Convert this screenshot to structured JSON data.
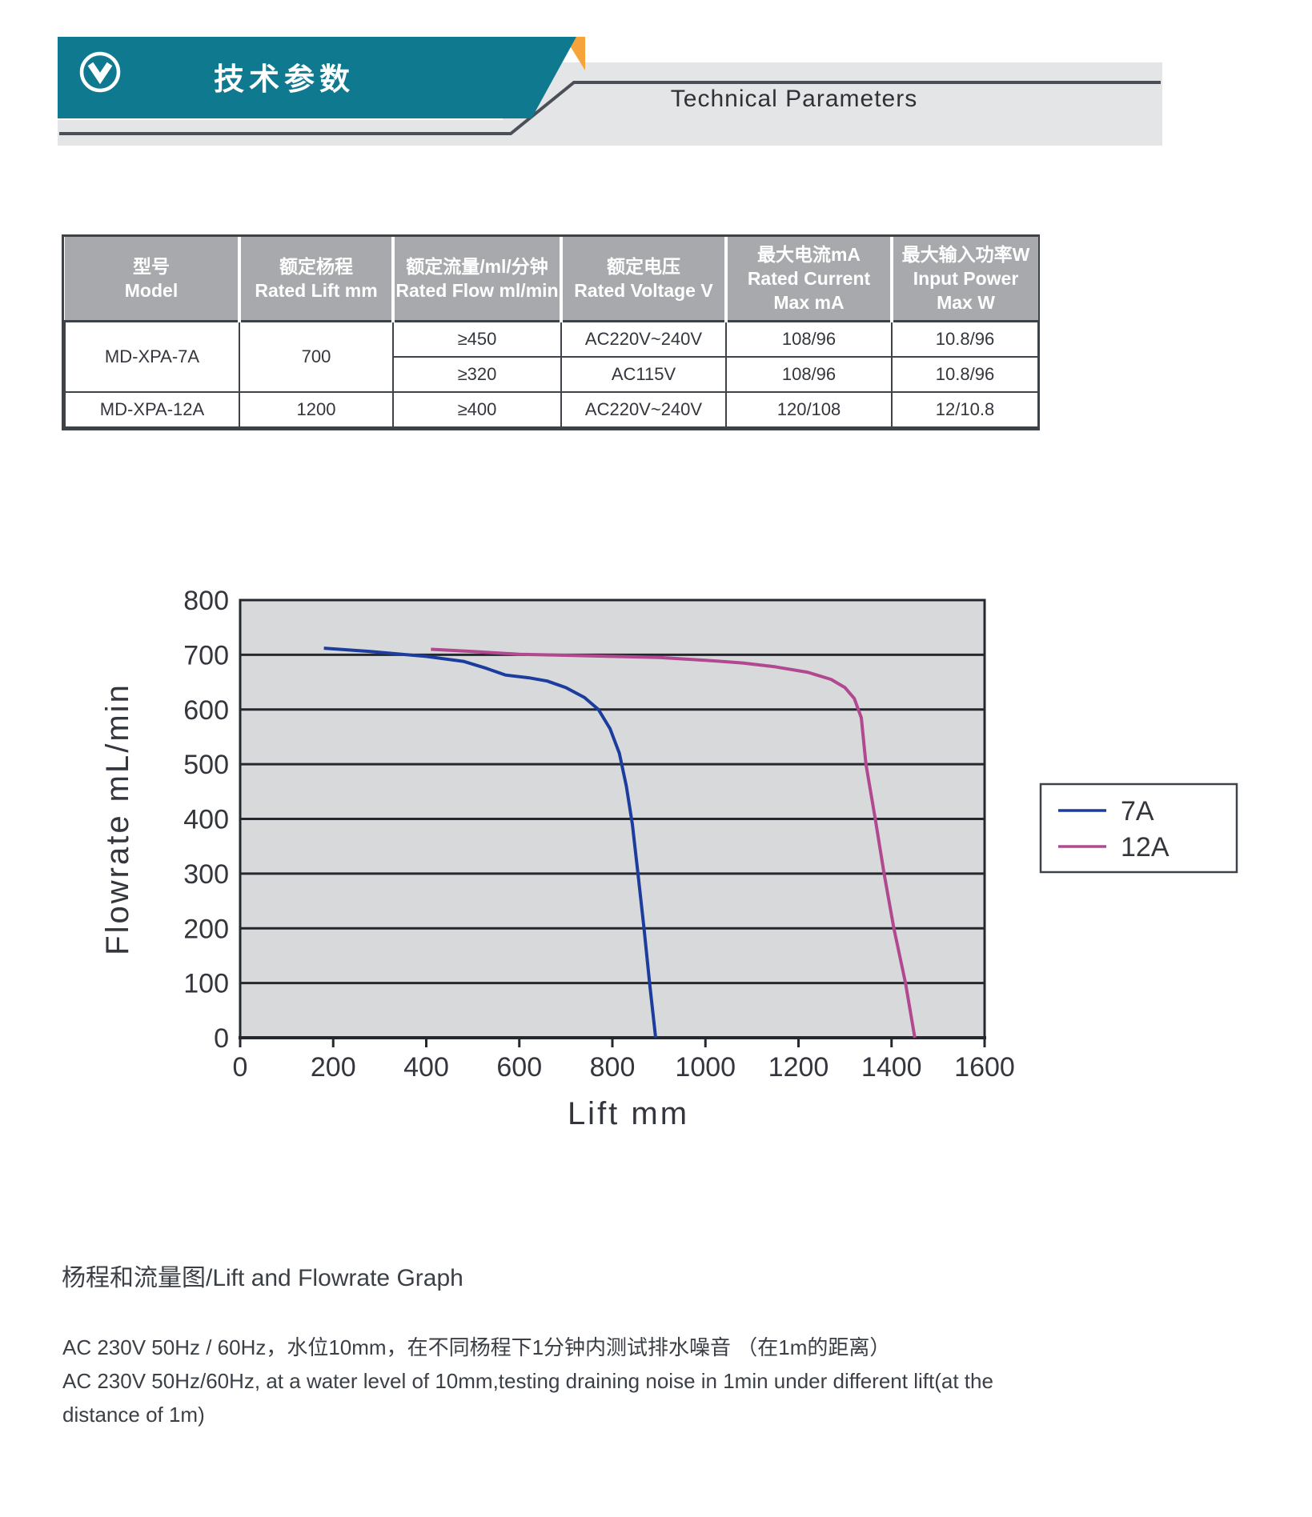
{
  "header": {
    "title_zh": "技术参数",
    "title_en": "Technical Parameters",
    "icon": "chevron-down-circle-icon",
    "colors": {
      "teal": "#0f798f",
      "orange": "#f6a33a",
      "banner_gray": "#e4e5e7",
      "line_dark": "#4b5058"
    }
  },
  "table": {
    "columns": [
      {
        "lines": [
          "型号",
          "Model"
        ]
      },
      {
        "lines": [
          "额定杨程",
          "Rated Lift mm"
        ]
      },
      {
        "lines": [
          "额定流量/ml/分钟",
          "Rated Flow ml/min"
        ]
      },
      {
        "lines": [
          "额定电压",
          "Rated Voltage V"
        ]
      },
      {
        "lines": [
          "最大电流mA",
          "Rated Current",
          "Max mA"
        ]
      },
      {
        "lines": [
          "最大输入功率W",
          "Input Power",
          "Max W"
        ]
      }
    ],
    "rows": {
      "xpa7": {
        "model": "MD-XPA-7A",
        "lift": "700",
        "sub1": {
          "flow": "≥450",
          "voltage": "AC220V~240V",
          "current": "108/96",
          "power": "10.8/96"
        },
        "sub2": {
          "flow": "≥320",
          "voltage": "AC115V",
          "current": "108/96",
          "power": "10.8/96"
        }
      },
      "xpa12": {
        "model": "MD-XPA-12A",
        "lift": "1200",
        "flow": "≥400",
        "voltage": "AC220V~240V",
        "current": "120/108",
        "power": "12/10.8"
      }
    }
  },
  "chart_data": {
    "type": "line",
    "title": "",
    "xlabel": "Lift mm",
    "ylabel": "Flowrate mL/min",
    "xlim": [
      0,
      1600
    ],
    "ylim": [
      0,
      800
    ],
    "x_ticks": [
      0,
      200,
      400,
      600,
      800,
      1000,
      1200,
      1400,
      1600
    ],
    "y_ticks": [
      0,
      100,
      200,
      300,
      400,
      500,
      600,
      700,
      800
    ],
    "grid": "horizontal",
    "plot_bg": "#d8d9db",
    "grid_color": "#25282e",
    "legend_position": "right",
    "series": [
      {
        "name": "7A",
        "color": "#1c3c9e",
        "points": [
          [
            180,
            712
          ],
          [
            280,
            706
          ],
          [
            400,
            697
          ],
          [
            480,
            688
          ],
          [
            530,
            675
          ],
          [
            570,
            663
          ],
          [
            620,
            658
          ],
          [
            660,
            652
          ],
          [
            700,
            640
          ],
          [
            740,
            622
          ],
          [
            770,
            600
          ],
          [
            795,
            565
          ],
          [
            815,
            520
          ],
          [
            830,
            460
          ],
          [
            843,
            390
          ],
          [
            855,
            300
          ],
          [
            868,
            200
          ],
          [
            880,
            100
          ],
          [
            893,
            0
          ]
        ]
      },
      {
        "name": "12A",
        "color": "#b2488f",
        "points": [
          [
            410,
            710
          ],
          [
            500,
            706
          ],
          [
            600,
            701
          ],
          [
            700,
            699
          ],
          [
            800,
            697
          ],
          [
            900,
            695
          ],
          [
            1000,
            690
          ],
          [
            1080,
            685
          ],
          [
            1150,
            678
          ],
          [
            1220,
            668
          ],
          [
            1270,
            655
          ],
          [
            1300,
            640
          ],
          [
            1320,
            620
          ],
          [
            1335,
            585
          ],
          [
            1345,
            500
          ],
          [
            1365,
            400
          ],
          [
            1384,
            300
          ],
          [
            1405,
            200
          ],
          [
            1430,
            100
          ],
          [
            1450,
            0
          ]
        ]
      }
    ]
  },
  "captions": {
    "graph_title": "杨程和流量图/Lift and Flowrate Graph",
    "note_zh": "AC 230V 50Hz / 60Hz，水位10mm，在不同杨程下1分钟内测试排水噪音 （在1m的距离）",
    "note_en_line1": "AC 230V 50Hz/60Hz, at a water level of 10mm,testing draining noise in 1min under different lift(at the",
    "note_en_line2": "distance of 1m)"
  }
}
